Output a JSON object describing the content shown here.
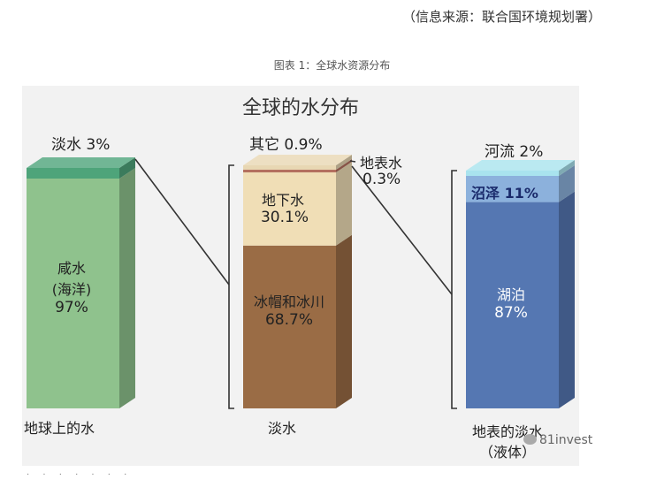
{
  "source_note": "（信息来源：联合国环境规划署）",
  "figure_caption": "图表 1：全球水资源分布",
  "watermark": "81invest",
  "footer_snippet": "·  ·  ·  ·  ·  ·  ·",
  "colors": {
    "salt_water": "#8fc28d",
    "fresh_water_on_earth": "#4ea47a",
    "other": "#e8d7b3",
    "surface_water": "#b4705f",
    "groundwater": "#f0deb6",
    "ice_caps_glaciers": "#9a6c45",
    "rivers": "#a9e3ee",
    "swamps": "#8cb1dc",
    "lakes": "#5577b2"
  },
  "chart_data": {
    "type": "stacked-bar",
    "title": "全球的水分布",
    "bars": [
      {
        "category": "地球上的水",
        "segments": [
          {
            "name": "咸水(海洋)",
            "value": 97,
            "label_lines": [
              "咸水",
              "(海洋)",
              "97%"
            ]
          },
          {
            "name": "淡水",
            "value": 3,
            "label_lines": [
              "淡水 3%"
            ]
          }
        ]
      },
      {
        "category": "淡水",
        "segments": [
          {
            "name": "冰帽和冰川",
            "value": 68.7,
            "label_lines": [
              "冰帽和冰川",
              "68.7%"
            ]
          },
          {
            "name": "地下水",
            "value": 30.1,
            "label_lines": [
              "地下水",
              "30.1%"
            ]
          },
          {
            "name": "地表水",
            "value": 0.3,
            "label_lines": [
              "地表水",
              "0.3%"
            ]
          },
          {
            "name": "其它",
            "value": 0.9,
            "label_lines": [
              "其它 0.9%"
            ]
          }
        ]
      },
      {
        "category": "地表的淡水（液体）",
        "segments": [
          {
            "name": "湖泊",
            "value": 87,
            "label_lines": [
              "湖泊",
              "87%"
            ]
          },
          {
            "name": "沼泽",
            "value": 11,
            "label_lines": [
              "沼泽 11%"
            ]
          },
          {
            "name": "河流",
            "value": 2,
            "label_lines": [
              "河流 2%"
            ]
          }
        ]
      }
    ],
    "category_labels": [
      [
        "地球上的水"
      ],
      [
        "淡水"
      ],
      [
        "地表的淡水",
        "（液体）"
      ]
    ]
  }
}
